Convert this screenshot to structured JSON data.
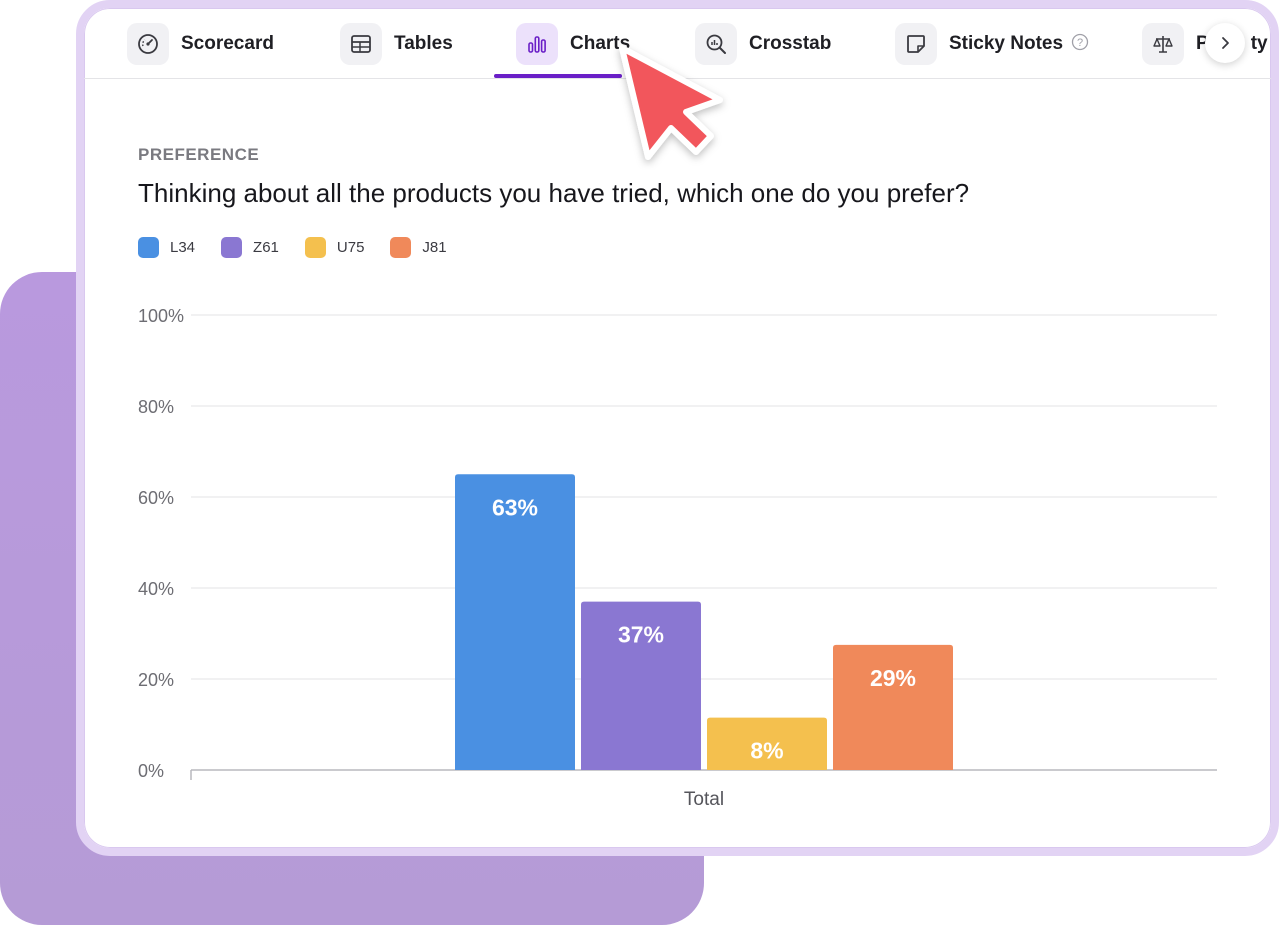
{
  "tabs": [
    {
      "label": "Scorecard",
      "icon": "gauge-icon"
    },
    {
      "label": "Tables",
      "icon": "table-icon"
    },
    {
      "label": "Charts",
      "icon": "bar-chart-icon",
      "active": true
    },
    {
      "label": "Crosstab",
      "icon": "magnifier-chart-icon"
    },
    {
      "label": "Sticky Notes",
      "icon": "sticky-note-icon"
    },
    {
      "label": "P",
      "label_tail": "ty",
      "icon": "scale-icon"
    }
  ],
  "section_label": "PREFERENCE",
  "question": "Thinking about all the products you have tried, which one do you prefer?",
  "colors": {
    "accent": "#6a1fc7",
    "L34": "#4a90e2",
    "Z61": "#8a77d2",
    "U75": "#f4c04e",
    "J81": "#f0895a"
  },
  "chart_data": {
    "type": "bar",
    "categories": [
      "Total"
    ],
    "series": [
      {
        "name": "L34",
        "values": [
          63
        ],
        "label": "63%",
        "color": "#4a90e2"
      },
      {
        "name": "Z61",
        "values": [
          37
        ],
        "label": "37%",
        "color": "#8a77d2"
      },
      {
        "name": "U75",
        "values": [
          8
        ],
        "label": "8%",
        "color": "#f4c04e"
      },
      {
        "name": "J81",
        "values": [
          29
        ],
        "label": "29%",
        "color": "#f0895a"
      }
    ],
    "bar_extents": [
      65,
      37,
      11.5,
      27.5
    ],
    "yticks": [
      "100%",
      "80%",
      "60%",
      "40%",
      "20%",
      "0%"
    ],
    "ytick_values": [
      100,
      80,
      60,
      40,
      20,
      0
    ],
    "ylim": [
      0,
      100
    ],
    "grid": true,
    "legend_position": "top-left",
    "xlabel": "",
    "ylabel": ""
  }
}
